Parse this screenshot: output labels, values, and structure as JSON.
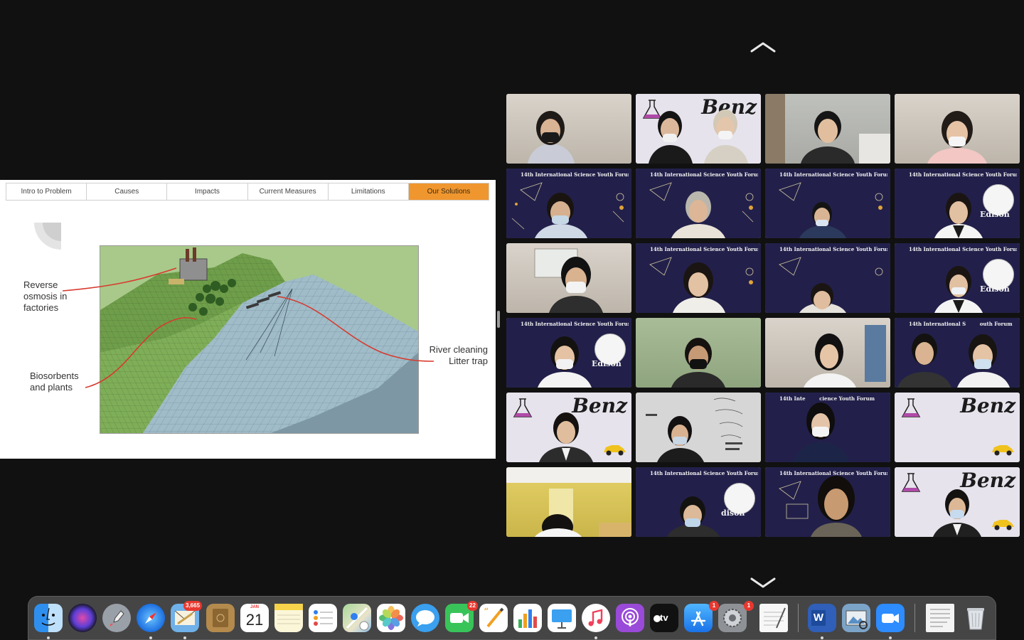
{
  "slide": {
    "tabs": [
      {
        "label": "Intro to Problem",
        "active": false
      },
      {
        "label": "Causes",
        "active": false
      },
      {
        "label": "Impacts",
        "active": false
      },
      {
        "label": "Current Measures",
        "active": false
      },
      {
        "label": "Limitations",
        "active": false
      },
      {
        "label": "Our Solutions",
        "active": true
      }
    ],
    "callouts": {
      "reverse_osmosis": [
        "Reverse",
        "osmosis in",
        "factories"
      ],
      "biosorbents": [
        "Biosorbents",
        "and plants"
      ],
      "river_cleaning": [
        "River cleaning",
        "Litter trap"
      ]
    },
    "accent_color": "#f0962e",
    "callout_line_color": "#d83a2e"
  },
  "grid": {
    "forum_banner": "14th International Science Youth Forum",
    "banner_partial_1": "14th International S",
    "banner_partial_1b": "outh Forum",
    "banner_partial_2": "14th Inte",
    "banner_partial_2b": "cience Youth Forum",
    "name_edison": "Edison",
    "name_edison_partial_1": "Edison",
    "name_edison_partial_2": "dison",
    "benz_mark": "Benz",
    "speaking_color": "#5dd26b"
  },
  "dock": {
    "badges": {
      "mail": "3,665",
      "facetime": "22",
      "appstore": "1",
      "settings": "1"
    },
    "calendar_month": "JAN",
    "calendar_day": "21",
    "appletv_label": "tv",
    "word_letter": "W"
  }
}
